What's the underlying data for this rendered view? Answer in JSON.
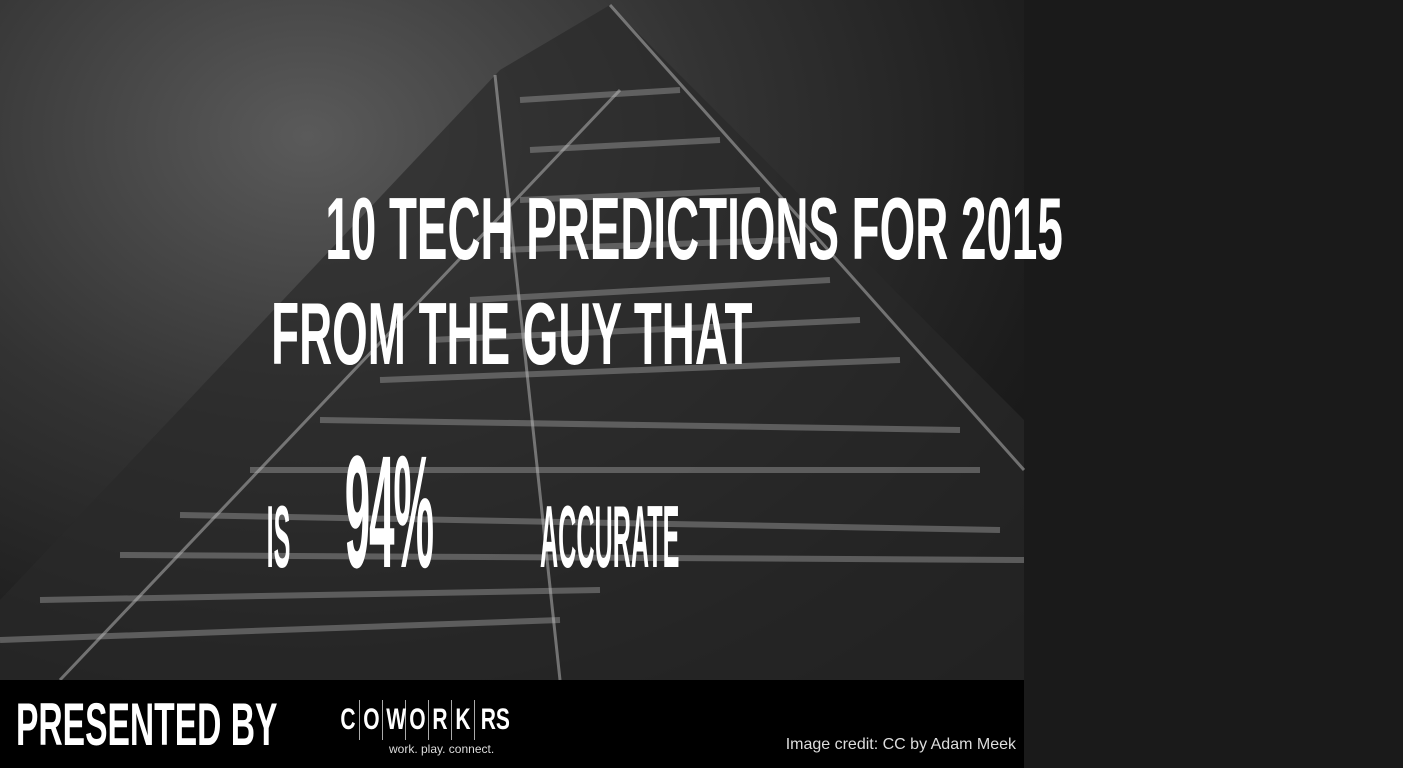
{
  "slide": {
    "title_line1": "10 TECH PREDICTIONS FOR 2015",
    "title_line2": "FROM THE GUY THAT",
    "title_line3_prefix": "IS",
    "title_line3_highlight": "94%",
    "title_line3_suffix": "ACCURATE"
  },
  "footer": {
    "presented_by": "PRESENTED BY",
    "logo_letters": [
      "C",
      "O",
      "W",
      "O",
      "R",
      "K",
      "RS"
    ],
    "logo_tagline": "work. play. connect.",
    "image_credit": "Image credit: CC by Adam Meek"
  }
}
